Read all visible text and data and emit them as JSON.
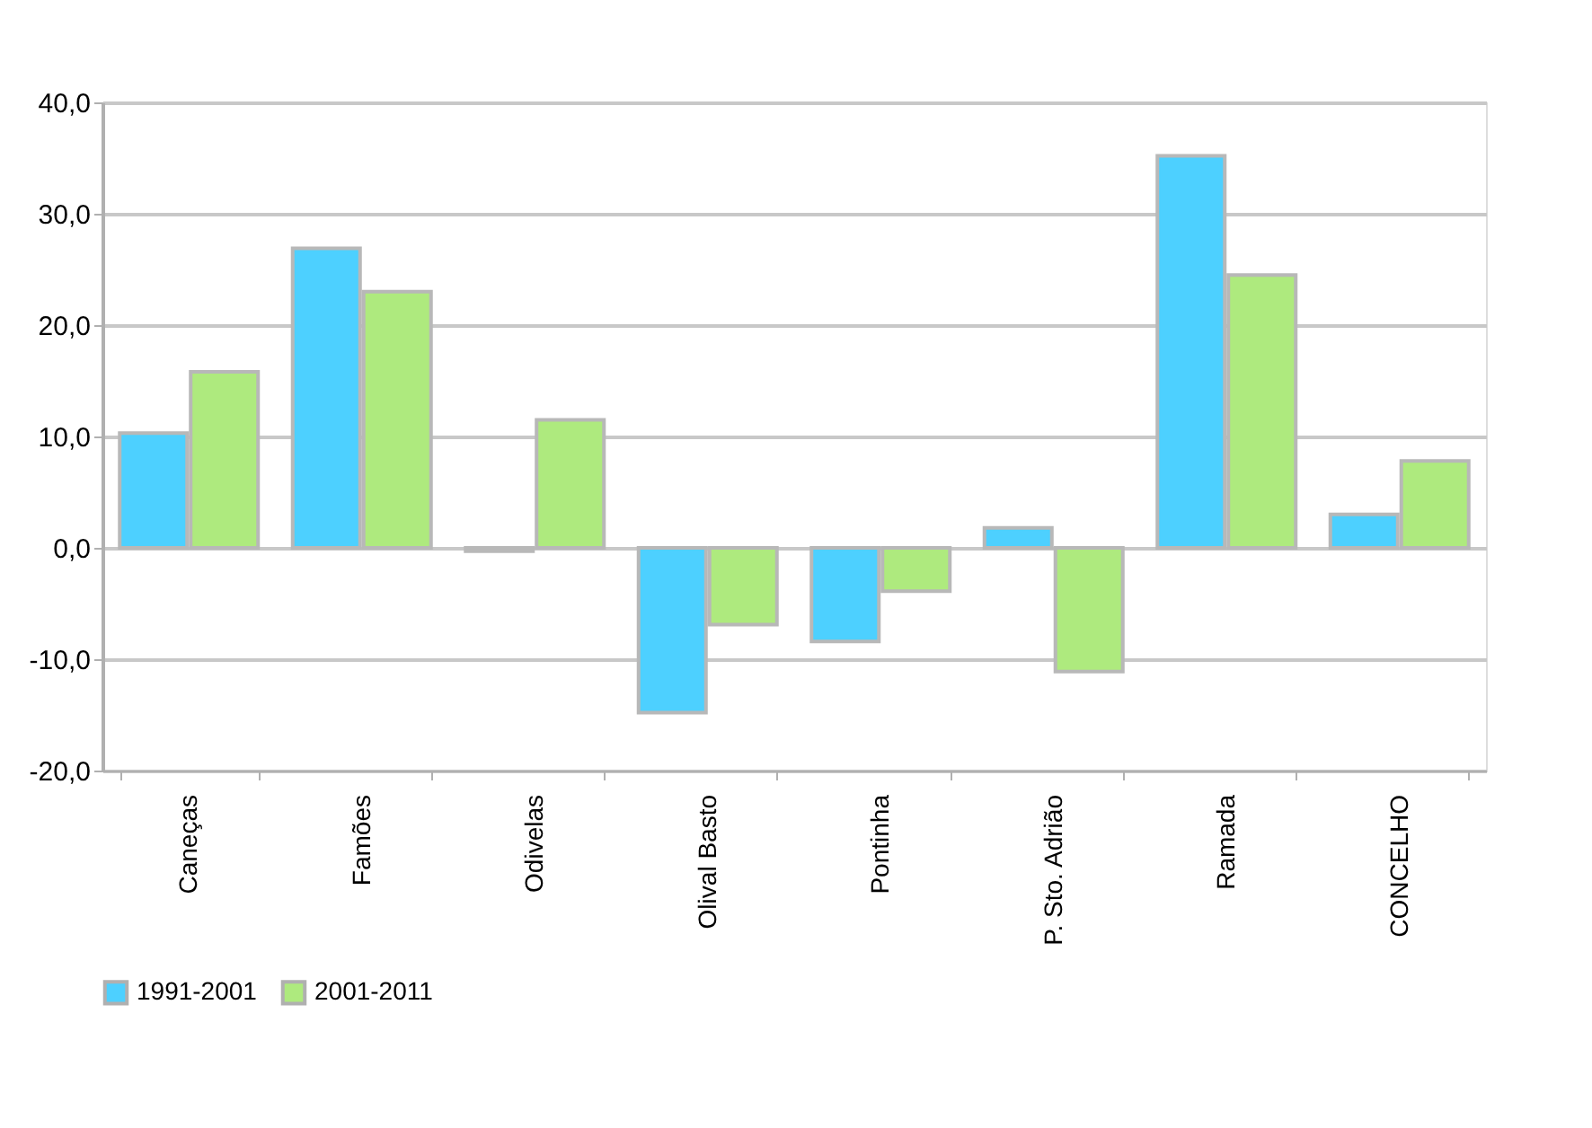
{
  "chart_data": {
    "type": "bar",
    "categories": [
      "Caneças",
      "Famões",
      "Odivelas",
      "Olival Basto",
      "Pontinha",
      "P. Sto. Adrião",
      "Ramada",
      "CONCELHO"
    ],
    "series": [
      {
        "name": "1991-2001",
        "color": "#4dd0ff",
        "values": [
          10.3,
          26.9,
          -0.3,
          -14.8,
          -8.4,
          1.8,
          35.2,
          3.0
        ]
      },
      {
        "name": "2001-2011",
        "color": "#aeea7e",
        "values": [
          15.8,
          23.0,
          11.5,
          -6.9,
          -3.9,
          -11.1,
          24.5,
          7.8
        ]
      }
    ],
    "ylim": [
      -20,
      40
    ],
    "yticks": [
      {
        "value": -20,
        "label": "-20,0"
      },
      {
        "value": -10,
        "label": "-10,0"
      },
      {
        "value": 0,
        "label": "0,0"
      },
      {
        "value": 10,
        "label": "10,0"
      },
      {
        "value": 20,
        "label": "20,0"
      },
      {
        "value": 30,
        "label": "30,0"
      },
      {
        "value": 40,
        "label": "40,0"
      }
    ],
    "grid": "y",
    "legend": "bottom"
  }
}
